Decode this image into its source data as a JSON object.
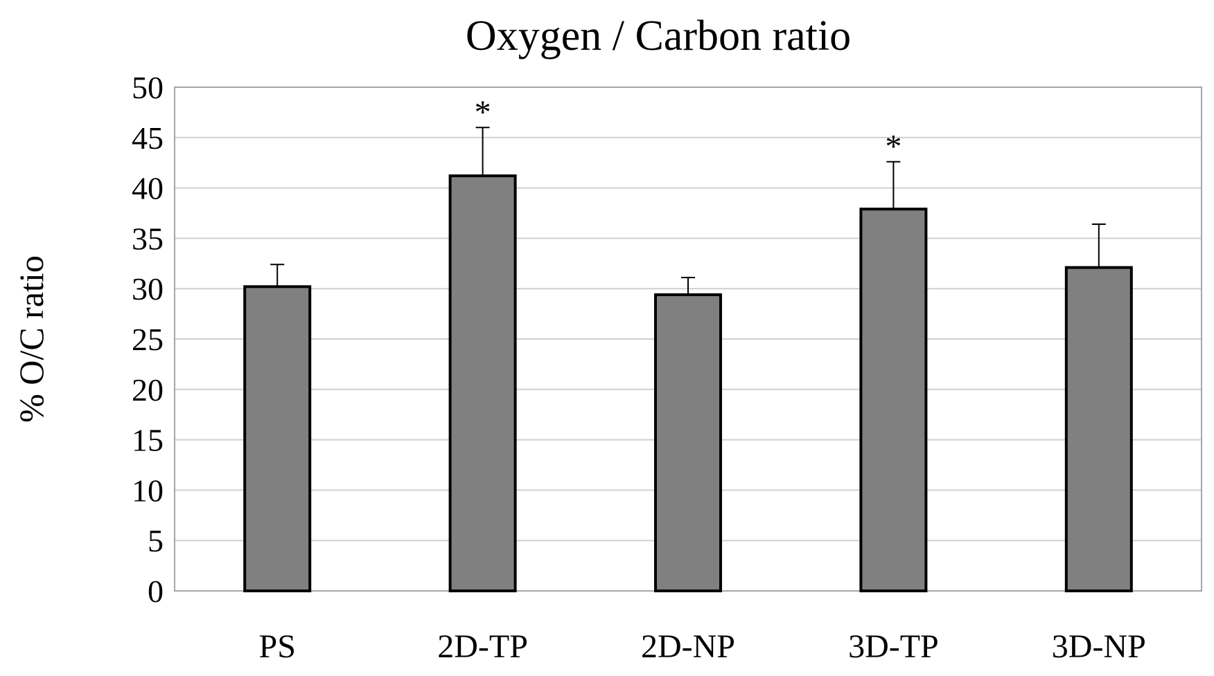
{
  "chart_data": {
    "type": "bar",
    "title": "Oxygen / Carbon ratio",
    "xlabel": "",
    "ylabel": "% O/C ratio",
    "ylim": [
      0,
      50
    ],
    "yticks": [
      0,
      5,
      10,
      15,
      20,
      25,
      30,
      35,
      40,
      45,
      50
    ],
    "grid": true,
    "categories": [
      "PS",
      "2D-TP",
      "2D-NP",
      "3D-TP",
      "3D-NP"
    ],
    "values": [
      30.2,
      41.2,
      29.4,
      37.9,
      32.1
    ],
    "errors": [
      2.2,
      4.8,
      1.7,
      4.7,
      4.3
    ],
    "annotations": [
      "",
      "*",
      "",
      "*",
      ""
    ],
    "colors": {
      "bar_fill": "#808080",
      "bar_stroke": "#000000",
      "grid": "#d0d0d0",
      "axis": "#a6a6a6",
      "error_bar": "#000000"
    }
  }
}
